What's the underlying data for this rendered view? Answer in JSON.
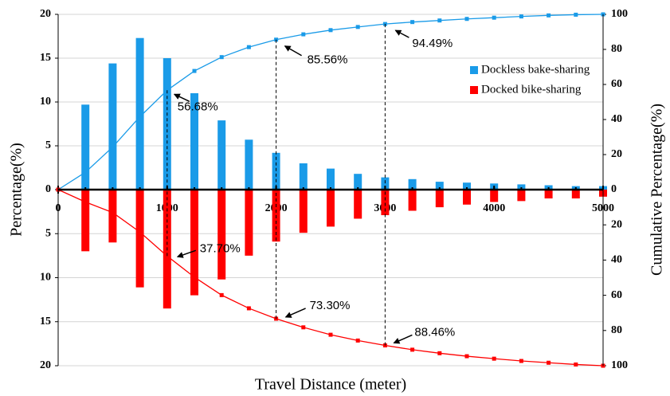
{
  "chart_data": [
    {
      "type": "bar",
      "ylabel": "Percentage(%)",
      "y2label": "Cumulative Percentage(%)",
      "xlim": [
        0,
        5000
      ],
      "ylim": [
        0,
        20
      ],
      "yticks": [
        0,
        5,
        10,
        15,
        20
      ],
      "y2lim": [
        0,
        100
      ],
      "y2ticks": [
        0,
        20,
        40,
        60,
        80,
        100
      ],
      "grid": true,
      "legend": "upper right",
      "series": [
        {
          "name": "Dockless bake-sharing",
          "color": "#1a9be8",
          "x": [
            250,
            500,
            750,
            1000,
            1250,
            1500,
            1750,
            2000,
            2250,
            2500,
            2750,
            3000,
            3250,
            3500,
            3750,
            4000,
            4250,
            4500,
            4750,
            5000
          ],
          "values": [
            9.7,
            14.4,
            17.3,
            15.0,
            11.0,
            7.9,
            5.7,
            4.2,
            3.0,
            2.4,
            1.8,
            1.4,
            1.2,
            0.9,
            0.8,
            0.7,
            0.6,
            0.5,
            0.4,
            0.4
          ]
        },
        {
          "type": "line",
          "axis": "y2",
          "color": "#1a9be8",
          "x": [
            0,
            250,
            500,
            750,
            1000,
            1250,
            1500,
            1750,
            2000,
            2250,
            2500,
            2750,
            3000,
            3250,
            3500,
            3750,
            4000,
            4250,
            4500,
            4750,
            5000
          ],
          "values": [
            0,
            9.9,
            24.3,
            41.6,
            56.68,
            67.7,
            75.6,
            81.3,
            85.56,
            88.6,
            91.0,
            92.8,
            94.49,
            95.6,
            96.5,
            97.4,
            98.1,
            98.8,
            99.4,
            99.8,
            100
          ]
        }
      ],
      "annotations": [
        {
          "label": "56.68%",
          "x": 1000,
          "y": 56.68,
          "axis": "y2"
        },
        {
          "label": "85.56%",
          "x": 2000,
          "y": 85.56,
          "axis": "y2"
        },
        {
          "label": "94.49%",
          "x": 3000,
          "y": 94.49,
          "axis": "y2"
        }
      ]
    },
    {
      "type": "bar",
      "xlabel": "Travel Distance (meter)",
      "xlim": [
        0,
        5000
      ],
      "xticks": [
        0,
        1000,
        2000,
        3000,
        4000,
        5000
      ],
      "ylim": [
        20,
        0
      ],
      "yticks": [
        5,
        10,
        15,
        20
      ],
      "y2lim": [
        100,
        0
      ],
      "y2ticks": [
        20,
        40,
        60,
        80,
        100
      ],
      "grid": true,
      "series": [
        {
          "name": "Docked bike-sharing",
          "color": "#ff0000",
          "x": [
            250,
            500,
            750,
            1000,
            1250,
            1500,
            1750,
            2000,
            2250,
            2500,
            2750,
            3000,
            3250,
            3500,
            3750,
            4000,
            4250,
            4500,
            4750,
            5000
          ],
          "values": [
            7.0,
            6.0,
            11.1,
            13.5,
            12.0,
            10.2,
            7.5,
            5.9,
            4.9,
            4.2,
            3.3,
            2.9,
            2.4,
            2.0,
            1.7,
            1.4,
            1.3,
            1.0,
            1.0,
            0.8
          ]
        },
        {
          "type": "line",
          "axis": "y2",
          "color": "#ff0000",
          "x": [
            0,
            250,
            500,
            750,
            1000,
            1250,
            1500,
            1750,
            2000,
            2250,
            2500,
            2750,
            3000,
            3250,
            3500,
            3750,
            4000,
            4250,
            4500,
            4750,
            5000
          ],
          "values": [
            0,
            7.0,
            13.0,
            24.1,
            37.7,
            49.7,
            59.9,
            67.4,
            73.3,
            78.2,
            82.4,
            85.7,
            88.46,
            90.9,
            92.9,
            94.6,
            96.0,
            97.3,
            98.3,
            99.3,
            100
          ]
        }
      ],
      "annotations": [
        {
          "label": "37.70%",
          "x": 1000,
          "y": 37.7,
          "axis": "y2"
        },
        {
          "label": "73.30%",
          "x": 2000,
          "y": 73.3,
          "axis": "y2"
        },
        {
          "label": "88.46%",
          "x": 3000,
          "y": 88.46,
          "axis": "y2"
        }
      ]
    }
  ]
}
